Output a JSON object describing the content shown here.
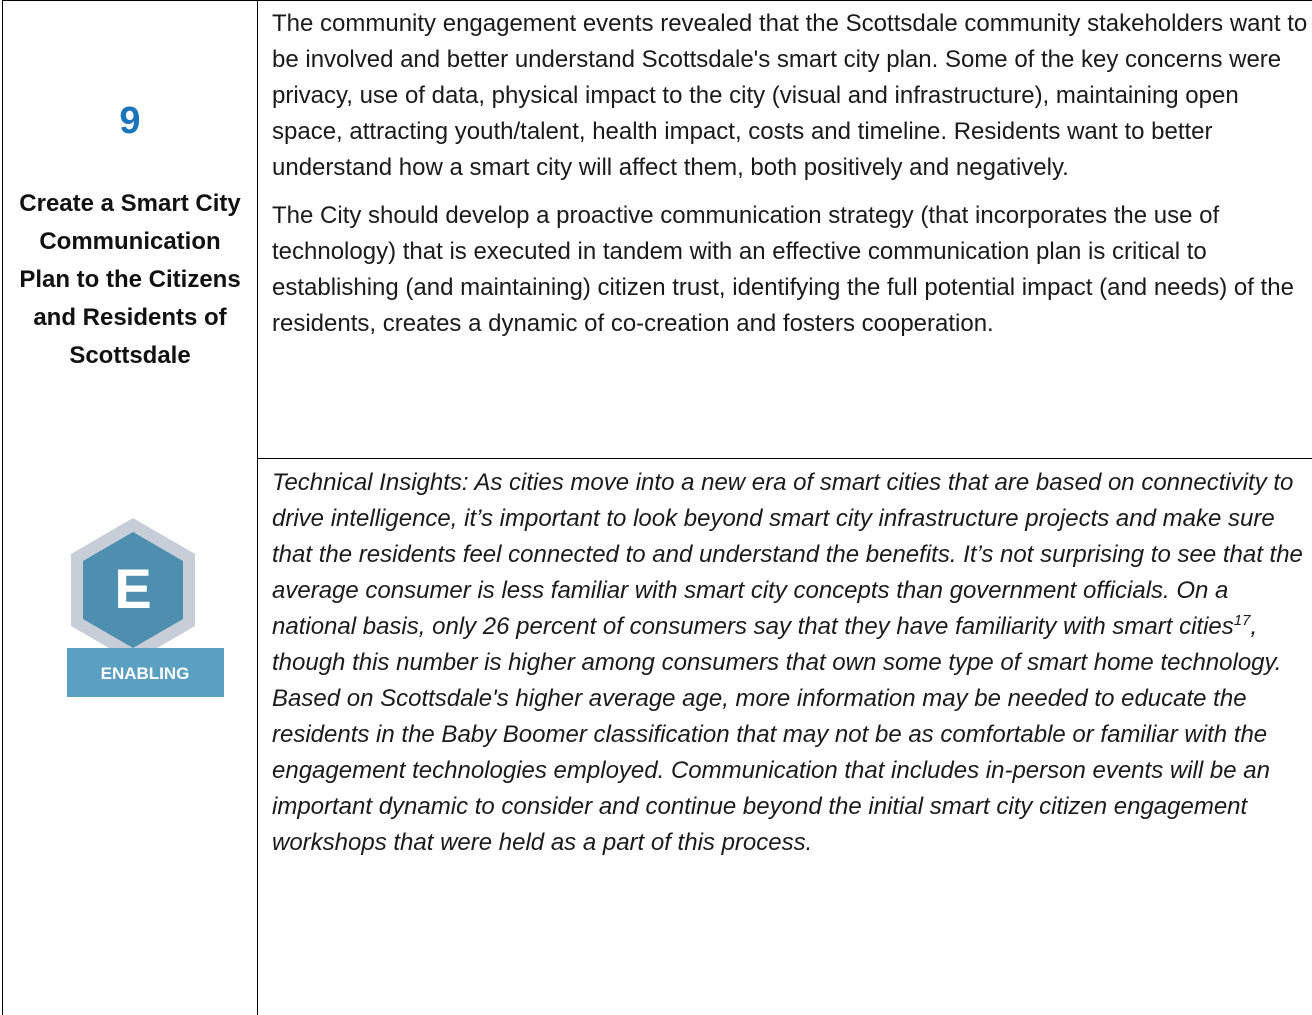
{
  "item": {
    "number": "9",
    "title": "Create a Smart City Communication Plan to the Citizens and Residents of Scottsdale",
    "badge_letter": "E",
    "badge_label": "ENABLING"
  },
  "paragraphs": [
    "The community engagement events revealed that the Scottsdale community stakeholders want to be involved and better understand Scottsdale's smart city plan. Some of the key concerns were privacy, use of data, physical impact to the city (visual and infrastructure), maintaining open space, attracting youth/talent, health impact, costs and timeline. Residents want to better understand how a smart city will affect them, both positively and negatively.",
    "The City should develop a proactive communication strategy (that incorporates the use of technology) that is executed in tandem with an effective communication plan is critical to establishing (and maintaining) citizen trust, identifying the full potential impact (and needs) of the residents, creates a dynamic of co-creation and fosters cooperation."
  ],
  "insight": {
    "text_before": "Technical Insights: As cities move into a new era of smart cities that are based on connectivity to drive intelligence, it’s important to look beyond smart city infrastructure projects and make sure that the residents feel connected to and understand the benefits. It’s not surprising to see that the average consumer is less familiar with smart city concepts than government officials. On a national basis, only 26 percent of consumers say that they have familiarity with smart cities",
    "footnote": "17",
    "text_after": ", though this number is higher among consumers that own some type of smart home technology. Based on Scottsdale's higher average age, more information may be needed to educate the residents in the Baby Boomer classification that may not be as comfortable or familiar with the engagement technologies employed. Communication that includes in-person events will be an important dynamic to consider and continue beyond the initial smart city citizen engagement workshops that were held as a part of this process."
  }
}
